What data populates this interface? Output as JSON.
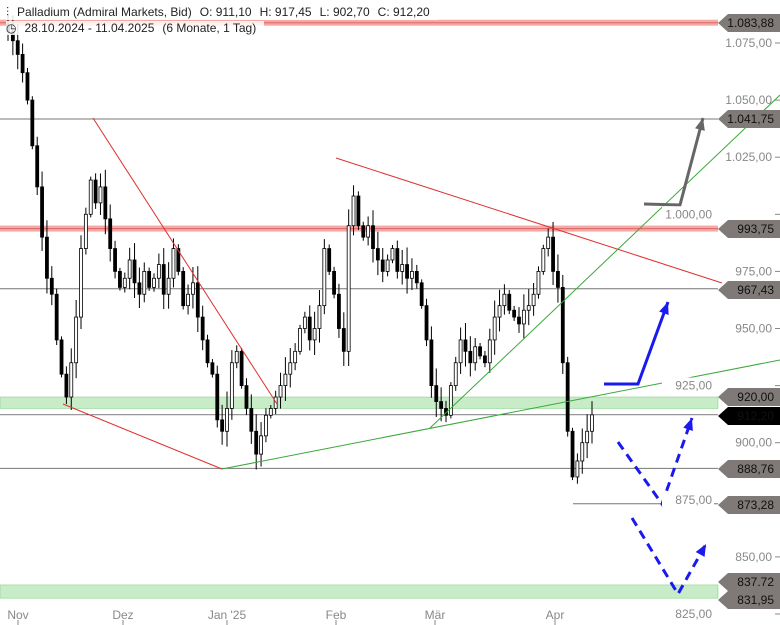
{
  "header": {
    "instrument": "Palladium (Admiral Markets, Bid)",
    "open": "O: 911,10",
    "high": "H: 917,45",
    "low": "L: 902,70",
    "close": "C: 912,20",
    "range": "28.10.2024 - 11.04.2025",
    "period": "(6 Monate, 1 Tag)",
    "icons": [
      "candles-icon",
      "clock-icon"
    ]
  },
  "chart_data": {
    "type": "candlestick",
    "ylim": [
      825,
      1090
    ],
    "y_ticks": [
      "1.075,00",
      "1.050,00",
      "1.025,00",
      "1.000,00",
      "975,00",
      "950,00",
      "925,00",
      "900,00",
      "875,00",
      "850,00",
      "825,00"
    ],
    "y_tick_values": [
      1075,
      1050,
      1025,
      1000,
      975,
      950,
      925,
      900,
      875,
      850,
      825
    ],
    "x_ticks": [
      "Nov",
      "Dez",
      "Jan '25",
      "Feb",
      "Mär",
      "Apr"
    ],
    "closes": [
      1080,
      1076,
      1070,
      1062,
      1050,
      1030,
      1012,
      990,
      972,
      965,
      945,
      930,
      920,
      935,
      955,
      985,
      1000,
      1015,
      1005,
      1012,
      998,
      985,
      975,
      968,
      972,
      980,
      970,
      965,
      975,
      968,
      972,
      978,
      965,
      972,
      985,
      975,
      960,
      965,
      970,
      955,
      945,
      935,
      930,
      910,
      905,
      915,
      935,
      940,
      925,
      915,
      905,
      895,
      903,
      912,
      915,
      920,
      925,
      930,
      935,
      940,
      950,
      955,
      945,
      950,
      960,
      985,
      975,
      965,
      950,
      940,
      995,
      1008,
      995,
      990,
      995,
      985,
      980,
      975,
      980,
      985,
      975,
      978,
      972,
      975,
      970,
      960,
      945,
      925,
      918,
      915,
      912,
      925,
      935,
      945,
      940,
      935,
      942,
      938,
      935,
      945,
      955,
      960,
      965,
      958,
      955,
      952,
      958,
      960,
      965,
      975,
      985,
      990,
      975,
      968,
      935,
      905,
      885,
      892,
      900,
      905,
      912.2
    ],
    "current_price": 912.2,
    "levels": [
      {
        "value": 1083.88,
        "label": "1.083,88",
        "style": "red-band"
      },
      {
        "value": 1041.75,
        "label": "1.041,75",
        "style": "grey-line"
      },
      {
        "value": 993.75,
        "label": "993,75",
        "style": "red-band"
      },
      {
        "value": 967.43,
        "label": "967,43",
        "style": "grey-line"
      },
      {
        "value": 920.0,
        "label": "920,00",
        "style": "green-band"
      },
      {
        "value": 912.2,
        "label": "912,20",
        "style": "current"
      },
      {
        "value": 888.76,
        "label": "888,76",
        "style": "grey-line"
      },
      {
        "value": 873.28,
        "label": "873,28",
        "style": "grey-line"
      },
      {
        "value": 837.72,
        "label": "837.72",
        "style": "green-band"
      },
      {
        "value": 831.95,
        "label": "831,95",
        "style": "green-band"
      }
    ],
    "colors": {
      "up": "#ffffff",
      "down": "#000000",
      "red_band": "#f4a9a4",
      "green_band": "#c8ecc8",
      "trend_red": "#e03030",
      "trend_green": "#3aa83a",
      "arrow_blue": "#1a1aee",
      "arrow_grey": "#666666",
      "tag": "#7f7a78"
    }
  }
}
